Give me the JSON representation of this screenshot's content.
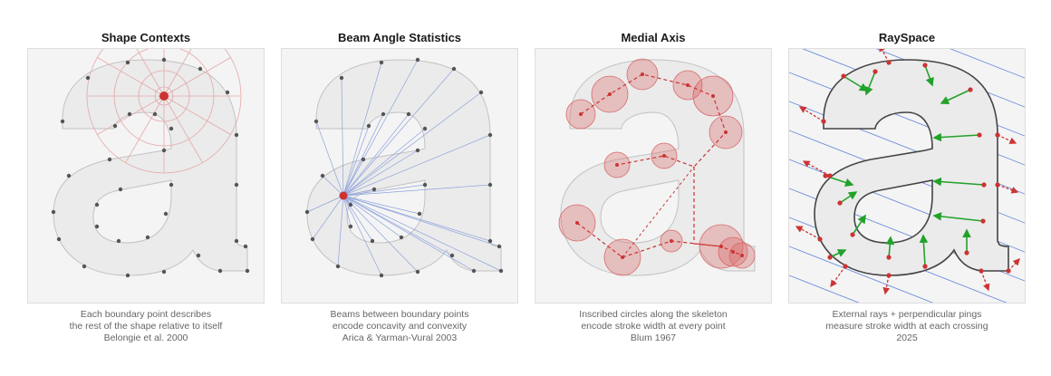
{
  "panels": [
    {
      "title": "Shape Contexts",
      "caption": [
        "Each boundary point describes",
        "the rest of the shape relative to itself",
        "Belongie et al. 2000"
      ],
      "technique": "shape-contexts",
      "accent": "#c94040"
    },
    {
      "title": "Beam Angle Statistics",
      "caption": [
        "Beams between boundary points",
        "encode concavity and convexity",
        "Arica & Yarman-Vural 2003"
      ],
      "technique": "beam-angle",
      "accent": "#7a97d8"
    },
    {
      "title": "Medial Axis",
      "caption": [
        "Inscribed circles along the skeleton",
        "encode stroke width at every point",
        "Blum 1967"
      ],
      "technique": "medial-axis",
      "accent": "#d96a6a"
    },
    {
      "title": "RaySpace",
      "caption": [
        "External rays + perpendicular pings",
        "measure stroke width at each crossing",
        "2025"
      ],
      "technique": "rayspace",
      "accent": "#2aa02a"
    }
  ],
  "glyph": "a",
  "colors": {
    "shape_fill": "#ebebeb",
    "shape_stroke": "#c2c2c2",
    "point": "#555555",
    "red_point": "#cc3333",
    "beam": "#8ea3dc",
    "ray": "#6f8fdc",
    "ping": "#22a22a"
  }
}
